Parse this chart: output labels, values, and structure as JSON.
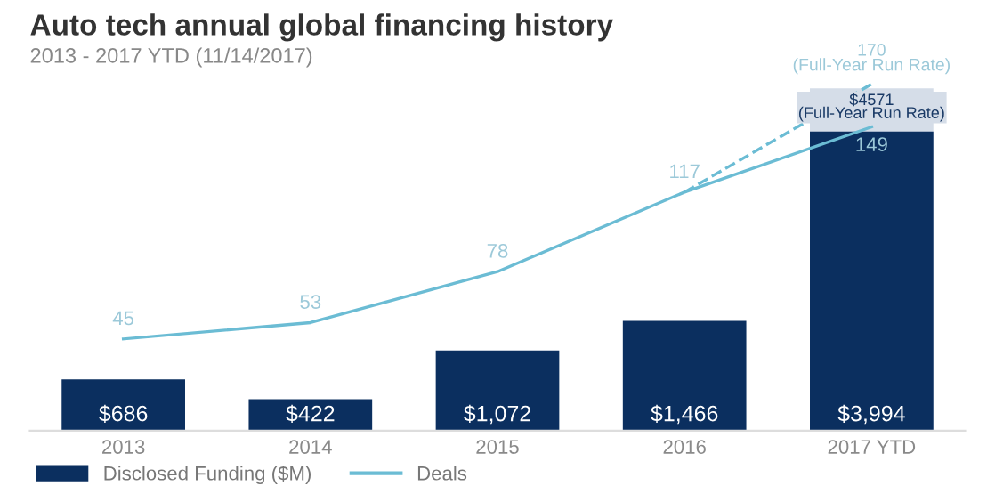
{
  "chart_data": {
    "type": "bar",
    "title": "Auto tech annual global financing history",
    "subtitle": "2013 - 2017 YTD (11/14/2017)",
    "categories": [
      "2013",
      "2014",
      "2015",
      "2016",
      "2017 YTD"
    ],
    "series": [
      {
        "color": "#d5dde8",
        "values": [
          null,
          null,
          null,
          null,
          4571
        ],
        "value_labels": [
          null,
          null,
          null,
          null,
          "$4571\n(Full-Year Run Rate)"
        ]
      },
      {
        "name": "Disclosed Funding ($M)",
        "color": "#0b2f5f",
        "values": [
          686,
          422,
          1072,
          1466,
          3994
        ],
        "value_labels": [
          "$686",
          "$422",
          "$1,072",
          "$1,466",
          "$3,994"
        ]
      },
      {
        "name": "Deals",
        "type": "line",
        "axis": "y2",
        "color": "#6bbcd4",
        "line_style": "solid",
        "values": [
          45,
          53,
          78,
          117,
          149
        ],
        "value_labels": [
          "45",
          "53",
          "78",
          "117",
          "149"
        ]
      },
      {
        "type": "line",
        "axis": "y2",
        "color": "#6bbcd4",
        "line_style": "dashed",
        "values": [
          null,
          null,
          null,
          117,
          170
        ],
        "value_labels": [
          null,
          null,
          null,
          null,
          "170\n(Full-Year Run Rate)"
        ]
      }
    ],
    "tick_labels": "x",
    "grid": false,
    "legend": "bottom"
  }
}
